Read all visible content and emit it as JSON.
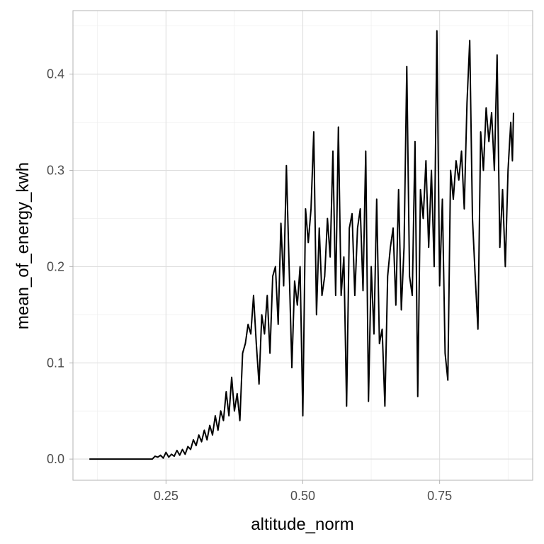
{
  "chart_data": {
    "type": "line",
    "title": "",
    "xlabel": "altitude_norm",
    "ylabel": "mean_of_energy_kwh",
    "xlim": [
      0.08,
      0.92
    ],
    "ylim": [
      -0.022,
      0.466
    ],
    "x_ticks": [
      0.25,
      0.5,
      0.75
    ],
    "x_tick_labels": [
      "0.25",
      "0.50",
      "0.75"
    ],
    "y_ticks": [
      0.0,
      0.1,
      0.2,
      0.3,
      0.4
    ],
    "y_tick_labels": [
      "0.0",
      "0.1",
      "0.2",
      "0.3",
      "0.4"
    ],
    "grid": true,
    "series": [
      {
        "color": "#000000",
        "points": [
          [
            0.11,
            0.0
          ],
          [
            0.15,
            0.0
          ],
          [
            0.2,
            0.0
          ],
          [
            0.225,
            0.0
          ],
          [
            0.23,
            0.003
          ],
          [
            0.235,
            0.002
          ],
          [
            0.24,
            0.004
          ],
          [
            0.245,
            0.001
          ],
          [
            0.25,
            0.007
          ],
          [
            0.255,
            0.002
          ],
          [
            0.26,
            0.005
          ],
          [
            0.265,
            0.003
          ],
          [
            0.27,
            0.009
          ],
          [
            0.275,
            0.004
          ],
          [
            0.28,
            0.01
          ],
          [
            0.285,
            0.005
          ],
          [
            0.29,
            0.013
          ],
          [
            0.295,
            0.01
          ],
          [
            0.3,
            0.02
          ],
          [
            0.305,
            0.014
          ],
          [
            0.31,
            0.025
          ],
          [
            0.315,
            0.018
          ],
          [
            0.32,
            0.03
          ],
          [
            0.325,
            0.02
          ],
          [
            0.33,
            0.035
          ],
          [
            0.335,
            0.025
          ],
          [
            0.34,
            0.045
          ],
          [
            0.345,
            0.03
          ],
          [
            0.35,
            0.05
          ],
          [
            0.355,
            0.04
          ],
          [
            0.36,
            0.07
          ],
          [
            0.365,
            0.045
          ],
          [
            0.37,
            0.085
          ],
          [
            0.375,
            0.05
          ],
          [
            0.38,
            0.068
          ],
          [
            0.385,
            0.04
          ],
          [
            0.39,
            0.11
          ],
          [
            0.395,
            0.12
          ],
          [
            0.4,
            0.14
          ],
          [
            0.405,
            0.13
          ],
          [
            0.41,
            0.17
          ],
          [
            0.415,
            0.12
          ],
          [
            0.42,
            0.078
          ],
          [
            0.425,
            0.15
          ],
          [
            0.43,
            0.13
          ],
          [
            0.435,
            0.17
          ],
          [
            0.44,
            0.11
          ],
          [
            0.445,
            0.19
          ],
          [
            0.45,
            0.2
          ],
          [
            0.455,
            0.14
          ],
          [
            0.46,
            0.245
          ],
          [
            0.465,
            0.18
          ],
          [
            0.47,
            0.305
          ],
          [
            0.475,
            0.2
          ],
          [
            0.48,
            0.095
          ],
          [
            0.485,
            0.185
          ],
          [
            0.49,
            0.16
          ],
          [
            0.495,
            0.2
          ],
          [
            0.5,
            0.045
          ],
          [
            0.505,
            0.26
          ],
          [
            0.51,
            0.225
          ],
          [
            0.515,
            0.26
          ],
          [
            0.52,
            0.34
          ],
          [
            0.525,
            0.15
          ],
          [
            0.53,
            0.24
          ],
          [
            0.535,
            0.17
          ],
          [
            0.54,
            0.19
          ],
          [
            0.545,
            0.25
          ],
          [
            0.55,
            0.21
          ],
          [
            0.555,
            0.32
          ],
          [
            0.56,
            0.17
          ],
          [
            0.565,
            0.345
          ],
          [
            0.57,
            0.17
          ],
          [
            0.575,
            0.21
          ],
          [
            0.58,
            0.055
          ],
          [
            0.585,
            0.24
          ],
          [
            0.59,
            0.255
          ],
          [
            0.595,
            0.17
          ],
          [
            0.6,
            0.24
          ],
          [
            0.605,
            0.26
          ],
          [
            0.61,
            0.175
          ],
          [
            0.615,
            0.32
          ],
          [
            0.62,
            0.06
          ],
          [
            0.625,
            0.2
          ],
          [
            0.63,
            0.13
          ],
          [
            0.635,
            0.27
          ],
          [
            0.64,
            0.12
          ],
          [
            0.645,
            0.135
          ],
          [
            0.65,
            0.055
          ],
          [
            0.655,
            0.19
          ],
          [
            0.66,
            0.22
          ],
          [
            0.665,
            0.24
          ],
          [
            0.67,
            0.16
          ],
          [
            0.675,
            0.28
          ],
          [
            0.68,
            0.155
          ],
          [
            0.685,
            0.22
          ],
          [
            0.69,
            0.408
          ],
          [
            0.695,
            0.19
          ],
          [
            0.7,
            0.17
          ],
          [
            0.705,
            0.33
          ],
          [
            0.71,
            0.065
          ],
          [
            0.715,
            0.28
          ],
          [
            0.72,
            0.25
          ],
          [
            0.725,
            0.31
          ],
          [
            0.73,
            0.22
          ],
          [
            0.735,
            0.3
          ],
          [
            0.74,
            0.2
          ],
          [
            0.745,
            0.445
          ],
          [
            0.75,
            0.18
          ],
          [
            0.755,
            0.27
          ],
          [
            0.76,
            0.11
          ],
          [
            0.765,
            0.082
          ],
          [
            0.77,
            0.3
          ],
          [
            0.775,
            0.27
          ],
          [
            0.78,
            0.31
          ],
          [
            0.785,
            0.29
          ],
          [
            0.79,
            0.32
          ],
          [
            0.795,
            0.26
          ],
          [
            0.8,
            0.37
          ],
          [
            0.805,
            0.435
          ],
          [
            0.81,
            0.25
          ],
          [
            0.815,
            0.19
          ],
          [
            0.82,
            0.135
          ],
          [
            0.825,
            0.34
          ],
          [
            0.83,
            0.3
          ],
          [
            0.835,
            0.365
          ],
          [
            0.84,
            0.33
          ],
          [
            0.845,
            0.36
          ],
          [
            0.85,
            0.3
          ],
          [
            0.855,
            0.42
          ],
          [
            0.86,
            0.22
          ],
          [
            0.865,
            0.28
          ],
          [
            0.87,
            0.2
          ],
          [
            0.875,
            0.3
          ],
          [
            0.88,
            0.35
          ],
          [
            0.883,
            0.31
          ],
          [
            0.885,
            0.36
          ]
        ]
      }
    ]
  }
}
